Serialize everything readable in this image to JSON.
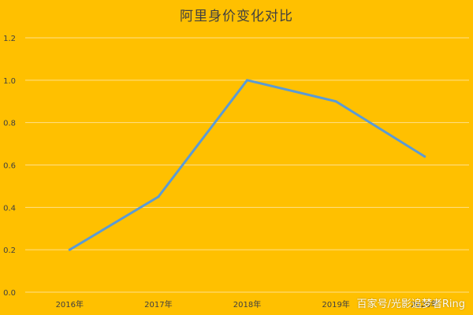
{
  "chart_data": {
    "type": "line",
    "title": "阿里身价变化对比",
    "categories": [
      "2016年",
      "2017年",
      "2018年",
      "2019年",
      "2020年"
    ],
    "series": [
      {
        "values": [
          0.2,
          0.45,
          1.0,
          0.9,
          0.64
        ]
      }
    ],
    "ylim": [
      0,
      1.2
    ],
    "yticks": [
      "0.0",
      "0.2",
      "0.4",
      "0.6",
      "0.8",
      "1.0",
      "1.2"
    ],
    "grid": true,
    "legend": "none"
  },
  "colors": {
    "background": "#FFC000",
    "line": "#5B9BD5",
    "grid": "#FFE08A",
    "text": "#404040"
  },
  "watermark": "百家号/光影追梦者Ring"
}
